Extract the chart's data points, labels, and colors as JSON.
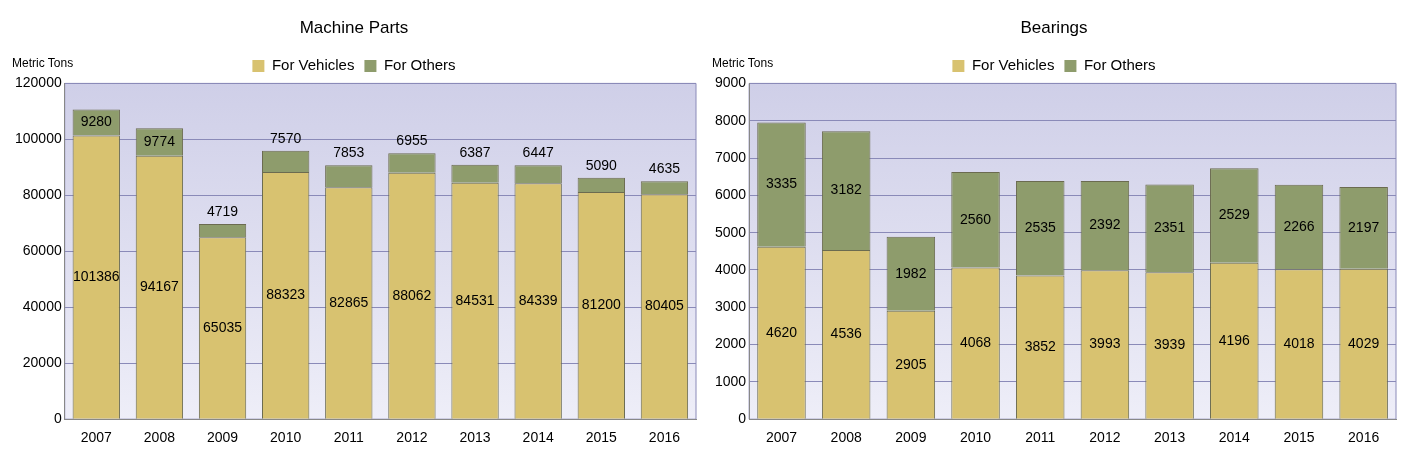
{
  "chart_data": [
    {
      "type": "bar",
      "title": "Machine Parts",
      "ylabel": "Metric Tons",
      "categories": [
        "2007",
        "2008",
        "2009",
        "2010",
        "2011",
        "2012",
        "2013",
        "2014",
        "2015",
        "2016"
      ],
      "stacked": true,
      "series": [
        {
          "name": "For Vehicles",
          "color": "#d8c270",
          "values": [
            101386,
            94167,
            65035,
            88323,
            82865,
            88062,
            84531,
            84339,
            81200,
            80405
          ]
        },
        {
          "name": "For Others",
          "color": "#8e9c6c",
          "values": [
            9280,
            9774,
            4719,
            7570,
            7853,
            6955,
            6387,
            6447,
            5090,
            4635
          ]
        }
      ],
      "ylim": [
        0,
        120000
      ],
      "yticks": [
        0,
        20000,
        40000,
        60000,
        80000,
        100000,
        120000
      ],
      "grid": "y",
      "legend": "top",
      "data_labels": true
    },
    {
      "type": "bar",
      "title": "Bearings",
      "ylabel": "Metric Tons",
      "categories": [
        "2007",
        "2008",
        "2009",
        "2010",
        "2011",
        "2012",
        "2013",
        "2014",
        "2015",
        "2016"
      ],
      "stacked": true,
      "series": [
        {
          "name": "For Vehicles",
          "color": "#d8c270",
          "values": [
            4620,
            4536,
            2905,
            4068,
            3852,
            3993,
            3939,
            4196,
            4018,
            4029
          ]
        },
        {
          "name": "For Others",
          "color": "#8e9c6c",
          "values": [
            3335,
            3182,
            1982,
            2560,
            2535,
            2392,
            2351,
            2529,
            2266,
            2197
          ]
        }
      ],
      "ylim": [
        0,
        9000
      ],
      "yticks": [
        0,
        1000,
        2000,
        3000,
        4000,
        5000,
        6000,
        7000,
        8000,
        9000
      ],
      "grid": "y",
      "legend": "top",
      "data_labels": true
    }
  ]
}
